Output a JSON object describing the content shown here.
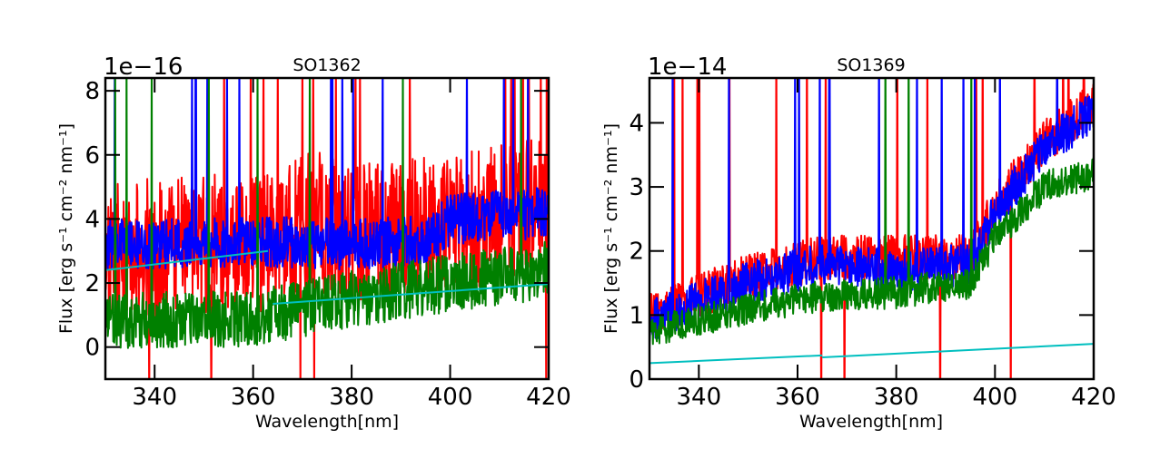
{
  "chart_data": [
    {
      "type": "line",
      "title": "SO1362",
      "xlabel": "Wavelength[nm]",
      "ylabel": "Flux [erg s⁻¹ cm⁻² nm⁻¹]",
      "offset_text": "1e−16",
      "xlim": [
        330,
        420
      ],
      "ylim": [
        -1.0,
        8.4
      ],
      "xticks": [
        340,
        360,
        380,
        400,
        420
      ],
      "yticks": [
        0,
        2,
        4,
        6,
        8
      ],
      "colors": {
        "red": "#ff0000",
        "blue": "#0000ff",
        "green": "#008000",
        "cyan": "#00bfbf"
      },
      "series": [
        {
          "name": "red",
          "color": "#ff0000",
          "mean": [
            [
              330,
              3.0
            ],
            [
              365,
              3.3
            ],
            [
              372,
              4.0
            ],
            [
              380,
              3.5
            ],
            [
              400,
              3.8
            ],
            [
              420,
              4.5
            ]
          ],
          "noise": 2.2,
          "seed": 11
        },
        {
          "name": "blue",
          "color": "#0000ff",
          "mean": [
            [
              330,
              3.2
            ],
            [
              360,
              3.3
            ],
            [
              380,
              3.2
            ],
            [
              396,
              3.4
            ],
            [
              400,
              4.0
            ],
            [
              420,
              4.2
            ]
          ],
          "noise": 0.8,
          "seed": 23
        },
        {
          "name": "green",
          "color": "#008000",
          "mean": [
            [
              330,
              0.8
            ],
            [
              360,
              0.9
            ],
            [
              380,
              1.5
            ],
            [
              400,
              2.0
            ],
            [
              420,
              2.4
            ]
          ],
          "noise": 0.9,
          "seed": 37
        },
        {
          "name": "cyan",
          "color": "#00bfbf",
          "segments": [
            [
              [
                330,
                2.4
              ],
              [
                363,
                3.0
              ]
            ],
            [
              [
                364,
                1.35
              ],
              [
                420,
                1.97
              ]
            ]
          ]
        }
      ]
    },
    {
      "type": "line",
      "title": "SO1369",
      "xlabel": "Wavelength[nm]",
      "ylabel": "Flux [erg s⁻¹ cm⁻² nm⁻¹]",
      "offset_text": "1e−14",
      "xlim": [
        330,
        420
      ],
      "ylim": [
        0,
        4.7
      ],
      "xticks": [
        340,
        360,
        380,
        400,
        420
      ],
      "yticks": [
        0,
        1,
        2,
        3,
        4
      ],
      "colors": {
        "red": "#ff0000",
        "blue": "#0000ff",
        "green": "#008000",
        "cyan": "#00bfbf"
      },
      "series": [
        {
          "name": "red",
          "color": "#ff0000",
          "mean": [
            [
              330,
              1.0
            ],
            [
              350,
              1.6
            ],
            [
              365,
              1.9
            ],
            [
              380,
              1.9
            ],
            [
              395,
              1.9
            ],
            [
              400,
              2.7
            ],
            [
              410,
              3.7
            ],
            [
              420,
              4.3
            ]
          ],
          "noise": 0.35,
          "seed": 51
        },
        {
          "name": "blue",
          "color": "#0000ff",
          "mean": [
            [
              330,
              0.9
            ],
            [
              350,
              1.5
            ],
            [
              365,
              1.8
            ],
            [
              380,
              1.7
            ],
            [
              395,
              1.8
            ],
            [
              400,
              2.6
            ],
            [
              410,
              3.6
            ],
            [
              420,
              4.2
            ]
          ],
          "noise": 0.33,
          "seed": 53
        },
        {
          "name": "green",
          "color": "#008000",
          "mean": [
            [
              330,
              0.75
            ],
            [
              350,
              1.1
            ],
            [
              365,
              1.3
            ],
            [
              380,
              1.35
            ],
            [
              395,
              1.5
            ],
            [
              400,
              2.2
            ],
            [
              410,
              3.0
            ],
            [
              420,
              3.2
            ]
          ],
          "noise": 0.25,
          "seed": 59
        },
        {
          "name": "cyan",
          "color": "#00bfbf",
          "segments": [
            [
              [
                330,
                0.25
              ],
              [
                365,
                0.37
              ]
            ],
            [
              [
                365,
                0.34
              ],
              [
                420,
                0.55
              ]
            ]
          ]
        }
      ]
    }
  ]
}
